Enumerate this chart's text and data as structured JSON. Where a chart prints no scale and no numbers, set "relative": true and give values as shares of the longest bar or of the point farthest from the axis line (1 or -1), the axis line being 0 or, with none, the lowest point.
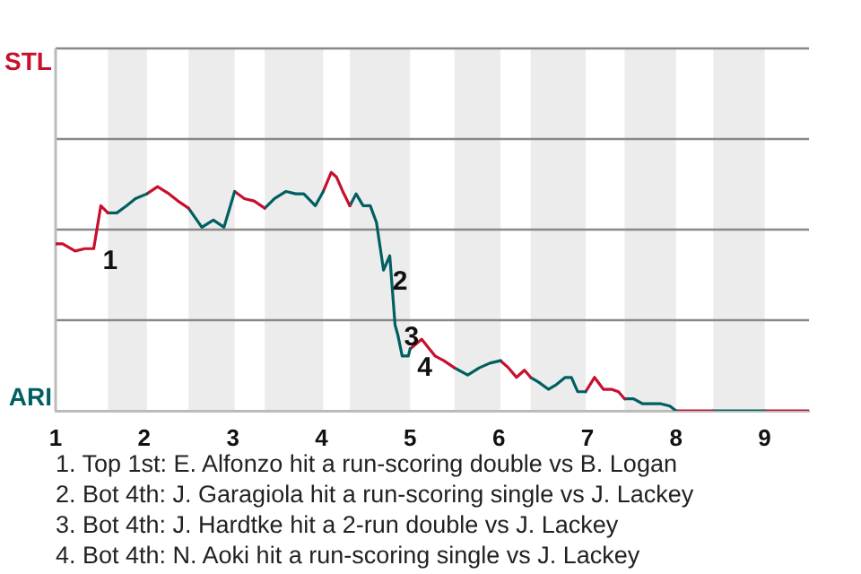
{
  "chart_data": {
    "type": "line",
    "relative": true,
    "series": [
      {
        "color": "#c8102e",
        "x": [
          1.0,
          1.08,
          1.22,
          1.33,
          1.43,
          1.51,
          1.59
        ],
        "values": [
          0.7,
          0.7,
          0.67,
          0.68,
          0.68,
          0.86,
          0.83
        ]
      },
      {
        "color": "#005f61",
        "x": [
          1.59,
          1.69,
          1.8,
          1.9,
          2.03
        ],
        "values": [
          0.83,
          0.83,
          0.86,
          0.89,
          0.91
        ]
      },
      {
        "color": "#c8102e",
        "x": [
          2.03,
          2.15,
          2.28,
          2.38,
          2.5
        ],
        "values": [
          0.91,
          0.94,
          0.91,
          0.88,
          0.85
        ]
      },
      {
        "color": "#005f61",
        "x": [
          2.5,
          2.65,
          2.78,
          2.9,
          3.02
        ],
        "values": [
          0.85,
          0.77,
          0.8,
          0.77,
          0.92
        ]
      },
      {
        "color": "#c8102e",
        "x": [
          3.02,
          3.13,
          3.24,
          3.36
        ],
        "values": [
          0.92,
          0.89,
          0.88,
          0.85
        ]
      },
      {
        "color": "#005f61",
        "x": [
          3.36,
          3.47,
          3.6,
          3.71,
          3.8,
          3.93,
          4.02
        ],
        "values": [
          0.85,
          0.89,
          0.92,
          0.91,
          0.91,
          0.86,
          0.92
        ]
      },
      {
        "color": "#c8102e",
        "x": [
          4.02,
          4.11,
          4.17,
          4.24,
          4.32
        ],
        "values": [
          0.92,
          1,
          0.98,
          0.92,
          0.86
        ]
      },
      {
        "color": "#005f61",
        "x": [
          4.32,
          4.39,
          4.47,
          4.55,
          4.62,
          4.7,
          4.77,
          4.83,
          4.86,
          4.91,
          4.98,
          5.0
        ],
        "values": [
          0.86,
          0.91,
          0.86,
          0.86,
          0.79,
          0.59,
          0.65,
          0.36,
          0.32,
          0.23,
          0.23,
          0.26
        ]
      },
      {
        "color": "#c8102e",
        "x": [
          5.0,
          5.13,
          5.28,
          5.38,
          5.5
        ],
        "values": [
          0.26,
          0.3,
          0.23,
          0.21,
          0.18
        ]
      },
      {
        "color": "#005f61",
        "x": [
          5.5,
          5.65,
          5.78,
          5.9,
          6.02
        ],
        "values": [
          0.18,
          0.15,
          0.18,
          0.2,
          0.21
        ]
      },
      {
        "color": "#c8102e",
        "x": [
          6.02,
          6.11,
          6.2,
          6.29,
          6.36
        ],
        "values": [
          0.21,
          0.18,
          0.14,
          0.17,
          0.14
        ]
      },
      {
        "color": "#005f61",
        "x": [
          6.36,
          6.45,
          6.56,
          6.65,
          6.75,
          6.82,
          6.89,
          6.98
        ],
        "values": [
          0.14,
          0.12,
          0.09,
          0.11,
          0.14,
          0.14,
          0.08,
          0.08
        ]
      },
      {
        "color": "#c8102e",
        "x": [
          6.98,
          7.08,
          7.18,
          7.27,
          7.35,
          7.42
        ],
        "values": [
          0.08,
          0.14,
          0.09,
          0.09,
          0.08,
          0.05
        ]
      },
      {
        "color": "#005f61",
        "x": [
          7.42,
          7.52,
          7.62,
          7.72,
          7.82,
          7.93,
          8.0
        ],
        "values": [
          0.05,
          0.05,
          0.03,
          0.03,
          0.03,
          0.02,
          0
        ]
      },
      {
        "color": "#c8102e",
        "x": [
          8.0,
          8.42
        ],
        "values": [
          0,
          0
        ]
      },
      {
        "color": "#005f61",
        "x": [
          8.42,
          9.0
        ],
        "values": [
          0,
          0
        ]
      },
      {
        "color": "#c8102e",
        "x": [
          9.0,
          9.5
        ],
        "values": [
          0,
          0
        ]
      }
    ],
    "xlim": [
      1,
      9.5
    ],
    "xticks": [
      1,
      2,
      3,
      4,
      5,
      6,
      7,
      8,
      9
    ],
    "bands": [
      {
        "axis": "x",
        "from": 1.59,
        "to": 2.03,
        "color": "#ececec"
      },
      {
        "axis": "x",
        "from": 2.5,
        "to": 3.02,
        "color": "#ececec"
      },
      {
        "axis": "x",
        "from": 3.36,
        "to": 4.02,
        "color": "#ececec"
      },
      {
        "axis": "x",
        "from": 4.32,
        "to": 5.0,
        "color": "#ececec"
      },
      {
        "axis": "x",
        "from": 5.5,
        "to": 6.02,
        "color": "#ececec"
      },
      {
        "axis": "x",
        "from": 6.36,
        "to": 6.98,
        "color": "#ececec"
      },
      {
        "axis": "x",
        "from": 7.42,
        "to": 8.0,
        "color": "#ececec"
      },
      {
        "axis": "x",
        "from": 8.42,
        "to": 9.0,
        "color": "#ececec"
      }
    ],
    "ref_lines": [
      {
        "axis": "y",
        "value": 0.38,
        "color": "#888888"
      },
      {
        "axis": "y",
        "value": 0.76,
        "color": "#888888"
      },
      {
        "axis": "y",
        "value": 1.14,
        "color": "#888888"
      },
      {
        "axis": "y",
        "value": 1.52,
        "color": "#888888"
      }
    ],
    "marker": "none",
    "line_style": "solid",
    "legend": false,
    "annotations": [
      "STL",
      "ARI",
      {
        "text": "1",
        "x": 1.43,
        "y": 0.68
      },
      {
        "text": "2",
        "x": 4.7,
        "y": 0.59
      },
      {
        "text": "3",
        "x": 4.83,
        "y": 0.36
      },
      {
        "text": "4",
        "x": 4.98,
        "y": 0.23
      },
      "1. Top 1st: E. Alfonzo hit a run-scoring double vs B. Logan",
      "2. Bot 4th: J. Garagiola hit a run-scoring single vs J. Lackey",
      "3. Bot 4th: J. Hardtke hit a 2-run double vs J. Lackey",
      "4. Bot 4th: N. Aoki hit a run-scoring single vs J. Lackey"
    ]
  }
}
